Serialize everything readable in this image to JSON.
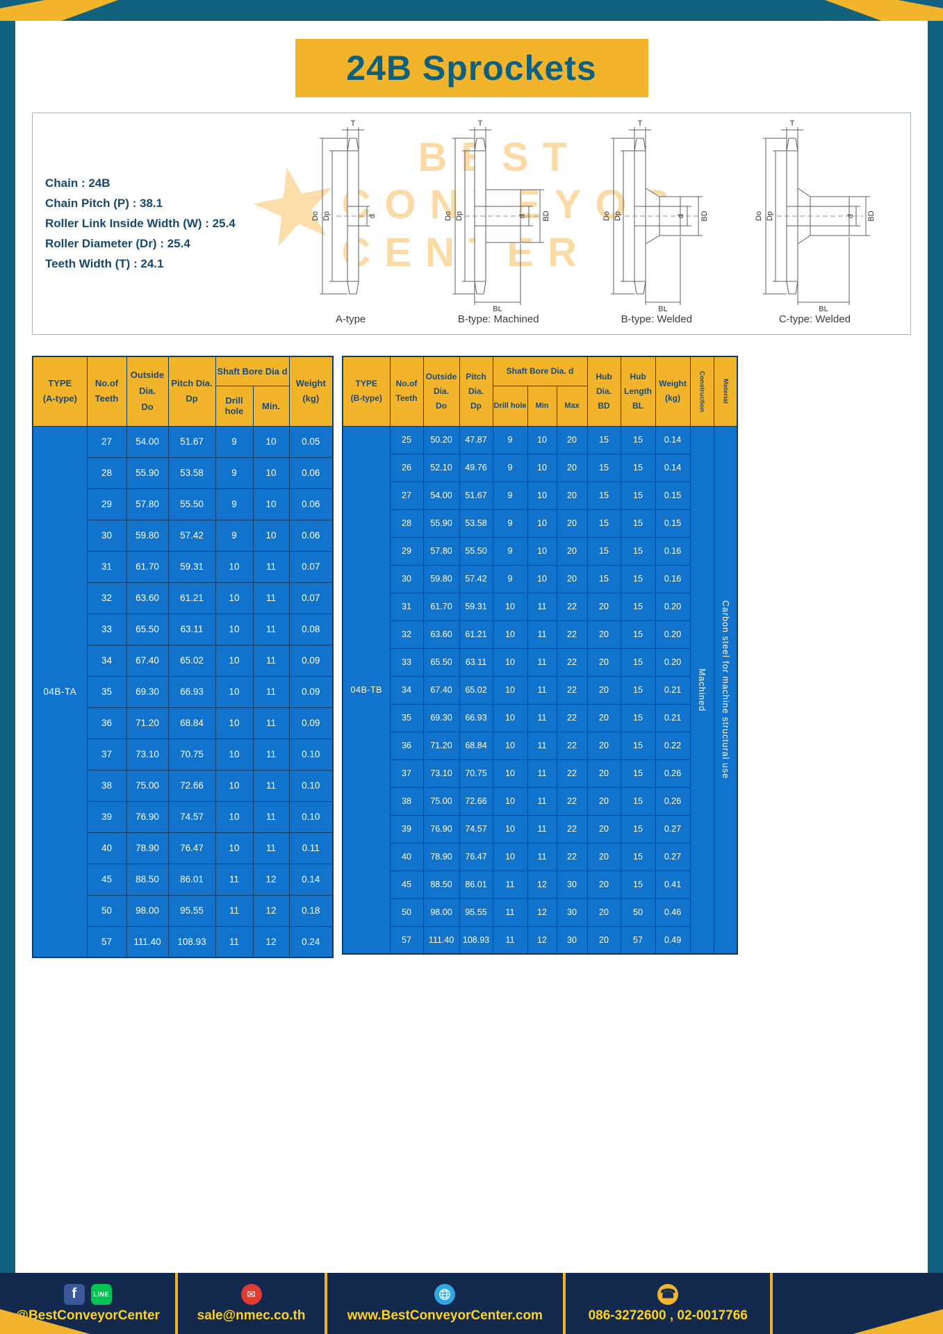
{
  "page": {
    "title": "24B Sprockets"
  },
  "colors": {
    "frame": "#11617f",
    "footer": "#14294e",
    "accent_yellow": "#f2b42a",
    "table_blue": "#1173cb",
    "header_text": "#1b4a7a",
    "footer_text": "#ffd21e"
  },
  "specs": {
    "lines": [
      "Chain : 24B",
      "Chain Pitch (P) : 38.1",
      "Roller Link Inside Width (W) : 25.4",
      "Roller Diameter (Dr) : 25.4",
      "Teeth Width (T) : 24.1"
    ]
  },
  "diagrams": {
    "watermark": {
      "star": "★",
      "lines": [
        "BEST",
        "CONVEYOR",
        "CENTER"
      ]
    },
    "items": [
      {
        "label": "A-type",
        "dims": [
          "T",
          "Do",
          "Dp",
          "d"
        ]
      },
      {
        "label": "B-type: Machined",
        "dims": [
          "T",
          "Do",
          "Dp",
          "d",
          "BD",
          "BL"
        ]
      },
      {
        "label": "B-type: Welded",
        "dims": [
          "T",
          "Do",
          "Dp",
          "d",
          "BD",
          "BL"
        ]
      },
      {
        "label": "C-type: Welded",
        "dims": [
          "T",
          "Do",
          "Dp",
          "d",
          "BD",
          "BL"
        ]
      }
    ]
  },
  "table_a": {
    "type_label": "04B-TA",
    "header": {
      "type": [
        "TYPE",
        "(A-type)"
      ],
      "teeth": [
        "No.of",
        "Teeth"
      ],
      "outside": [
        "Outside",
        "Dia.",
        "Do"
      ],
      "pitch": [
        "Pitch Dia.",
        "Dp"
      ],
      "bore_group": "Shaft Bore Dia d",
      "drill": "Drill hole",
      "min": "Min.",
      "weight": [
        "Weight",
        "(kg)"
      ]
    },
    "rows": [
      [
        "27",
        "54.00",
        "51.67",
        "9",
        "10",
        "0.05"
      ],
      [
        "28",
        "55.90",
        "53.58",
        "9",
        "10",
        "0.06"
      ],
      [
        "29",
        "57.80",
        "55.50",
        "9",
        "10",
        "0.06"
      ],
      [
        "30",
        "59.80",
        "57.42",
        "9",
        "10",
        "0.06"
      ],
      [
        "31",
        "61.70",
        "59.31",
        "10",
        "11",
        "0.07"
      ],
      [
        "32",
        "63.60",
        "61.21",
        "10",
        "11",
        "0.07"
      ],
      [
        "33",
        "65.50",
        "63.11",
        "10",
        "11",
        "0.08"
      ],
      [
        "34",
        "67.40",
        "65.02",
        "10",
        "11",
        "0.09"
      ],
      [
        "35",
        "69.30",
        "66.93",
        "10",
        "11",
        "0.09"
      ],
      [
        "36",
        "71.20",
        "68.84",
        "10",
        "11",
        "0.09"
      ],
      [
        "37",
        "73.10",
        "70.75",
        "10",
        "11",
        "0.10"
      ],
      [
        "38",
        "75.00",
        "72.66",
        "10",
        "11",
        "0.10"
      ],
      [
        "39",
        "76.90",
        "74.57",
        "10",
        "11",
        "0.10"
      ],
      [
        "40",
        "78.90",
        "76.47",
        "10",
        "11",
        "0.11"
      ],
      [
        "45",
        "88.50",
        "86.01",
        "11",
        "12",
        "0.14"
      ],
      [
        "50",
        "98.00",
        "95.55",
        "11",
        "12",
        "0.18"
      ],
      [
        "57",
        "111.40",
        "108.93",
        "11",
        "12",
        "0.24"
      ]
    ]
  },
  "table_b": {
    "type_label": "04B-TB",
    "construction_value": "Machined",
    "material_value": "Carbon steel for machine structural use",
    "header": {
      "type": [
        "TYPE",
        "(B-type)"
      ],
      "teeth": [
        "No.of",
        "Teeth"
      ],
      "outside": [
        "Outside",
        "Dia.",
        "Do"
      ],
      "pitch": [
        "Pitch",
        "Dia.",
        "Dp"
      ],
      "bore_group": "Shaft Bore Dia. d",
      "drill": "Drill hole",
      "min": "Min",
      "max": "Max",
      "hub_dia": [
        "Hub",
        "Dia.",
        "BD"
      ],
      "hub_len": [
        "Hub",
        "Length",
        "BL"
      ],
      "weight": [
        "Weight",
        "(kg)"
      ],
      "construction": "Construction",
      "material": "Material"
    },
    "rows": [
      [
        "25",
        "50.20",
        "47.87",
        "9",
        "10",
        "20",
        "15",
        "15",
        "0.14"
      ],
      [
        "26",
        "52.10",
        "49.76",
        "9",
        "10",
        "20",
        "15",
        "15",
        "0.14"
      ],
      [
        "27",
        "54.00",
        "51.67",
        "9",
        "10",
        "20",
        "15",
        "15",
        "0.15"
      ],
      [
        "28",
        "55.90",
        "53.58",
        "9",
        "10",
        "20",
        "15",
        "15",
        "0.15"
      ],
      [
        "29",
        "57.80",
        "55.50",
        "9",
        "10",
        "20",
        "15",
        "15",
        "0.16"
      ],
      [
        "30",
        "59.80",
        "57.42",
        "9",
        "10",
        "20",
        "15",
        "15",
        "0.16"
      ],
      [
        "31",
        "61.70",
        "59.31",
        "10",
        "11",
        "22",
        "20",
        "15",
        "0.20"
      ],
      [
        "32",
        "63.60",
        "61.21",
        "10",
        "11",
        "22",
        "20",
        "15",
        "0.20"
      ],
      [
        "33",
        "65.50",
        "63.11",
        "10",
        "11",
        "22",
        "20",
        "15",
        "0.20"
      ],
      [
        "34",
        "67.40",
        "65.02",
        "10",
        "11",
        "22",
        "20",
        "15",
        "0.21"
      ],
      [
        "35",
        "69.30",
        "66.93",
        "10",
        "11",
        "22",
        "20",
        "15",
        "0.21"
      ],
      [
        "36",
        "71.20",
        "68.84",
        "10",
        "11",
        "22",
        "20",
        "15",
        "0.22"
      ],
      [
        "37",
        "73.10",
        "70.75",
        "10",
        "11",
        "22",
        "20",
        "15",
        "0.26"
      ],
      [
        "38",
        "75.00",
        "72.66",
        "10",
        "11",
        "22",
        "20",
        "15",
        "0.26"
      ],
      [
        "39",
        "76.90",
        "74.57",
        "10",
        "11",
        "22",
        "20",
        "15",
        "0.27"
      ],
      [
        "40",
        "78.90",
        "76.47",
        "10",
        "11",
        "22",
        "20",
        "15",
        "0.27"
      ],
      [
        "45",
        "88.50",
        "86.01",
        "11",
        "12",
        "30",
        "20",
        "15",
        "0.41"
      ],
      [
        "50",
        "98.00",
        "95.55",
        "11",
        "12",
        "30",
        "20",
        "50",
        "0.46"
      ],
      [
        "57",
        "111.40",
        "108.93",
        "11",
        "12",
        "30",
        "20",
        "57",
        "0.49"
      ]
    ]
  },
  "footer": {
    "items": [
      {
        "text": "@BestConveyorCenter"
      },
      {
        "text": "sale@nmec.co.th"
      },
      {
        "text": "www.BestConveyorCenter.com"
      },
      {
        "text": "086-3272600 , 02-0017766"
      }
    ],
    "icon_glyphs": {
      "facebook": "f",
      "line": "LINE",
      "email": "✉",
      "phone": "☎"
    }
  }
}
